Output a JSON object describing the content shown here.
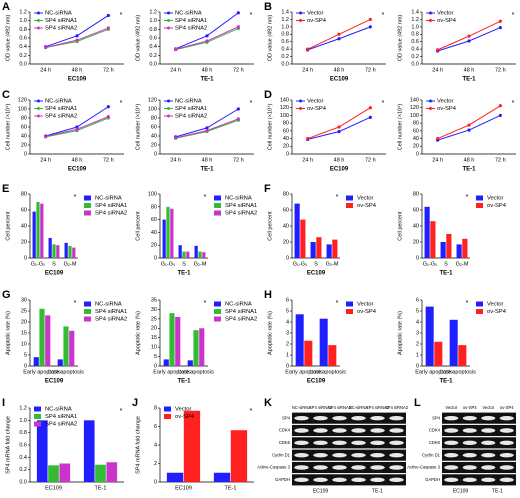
{
  "chart_data": [
    {
      "type": "line",
      "panel": "A",
      "ylabel": "OD value (492 nm)",
      "xlabel": "EC109",
      "categories": [
        "24 h",
        "48 h",
        "72 h"
      ],
      "series": [
        {
          "name": "NC-siRNA",
          "color": "#2020ff",
          "values": [
            0.4,
            0.65,
            1.12
          ]
        },
        {
          "name": "SP4 siRNA1",
          "color": "#33bb33",
          "values": [
            0.38,
            0.52,
            0.8
          ]
        },
        {
          "name": "SP4 siRNA2",
          "color": "#cc33cc",
          "values": [
            0.38,
            0.55,
            0.83
          ]
        }
      ],
      "ylim": [
        0,
        1.2
      ],
      "yticks": [
        {
          "value": 0,
          "label": "0.0"
        },
        0.2,
        0.4,
        0.6,
        0.8,
        {
          "value": 1,
          "label": "1.0"
        },
        1.2
      ],
      "legend": "upper left",
      "annotation": "*"
    },
    {
      "type": "line",
      "ylabel": "OD value (492 nm)",
      "xlabel": "TE-1",
      "categories": [
        "24 h",
        "48 h",
        "72 h"
      ],
      "series": [
        {
          "name": "NC-siRNA",
          "color": "#2020ff",
          "values": [
            0.35,
            0.65,
            1.18
          ]
        },
        {
          "name": "SP4 siRNA1",
          "color": "#33bb33",
          "values": [
            0.33,
            0.5,
            0.82
          ]
        },
        {
          "name": "SP4 siRNA2",
          "color": "#cc33cc",
          "values": [
            0.34,
            0.53,
            0.86
          ]
        }
      ],
      "ylim": [
        0,
        1.2
      ],
      "yticks": [
        {
          "value": 0,
          "label": "0.0"
        },
        0.2,
        0.4,
        0.6,
        0.8,
        {
          "value": 1,
          "label": "1.0"
        },
        1.2
      ],
      "legend": "upper left",
      "annotation": "*"
    },
    {
      "type": "line",
      "panel": "B",
      "ylabel": "OD value (492 nm)",
      "xlabel": "EC109",
      "categories": [
        "24 h",
        "48 h",
        "72 h"
      ],
      "series": [
        {
          "name": "Vector",
          "color": "#2020ff",
          "values": [
            0.38,
            0.68,
            1.0
          ]
        },
        {
          "name": "ov-SP4",
          "color": "#ff2020",
          "values": [
            0.4,
            0.8,
            1.2
          ]
        }
      ],
      "ylim": [
        0,
        1.4
      ],
      "yticks": [
        {
          "value": 0,
          "label": "0.0"
        },
        0.2,
        0.4,
        0.6,
        0.8,
        {
          "value": 1,
          "label": "1.0"
        },
        1.2,
        1.4
      ],
      "legend": "upper left",
      "annotation": "*"
    },
    {
      "type": "line",
      "ylabel": "OD value (492 nm)",
      "xlabel": "TE-1",
      "categories": [
        "24 h",
        "48 h",
        "72 h"
      ],
      "series": [
        {
          "name": "Vector",
          "color": "#2020ff",
          "values": [
            0.35,
            0.62,
            0.98
          ]
        },
        {
          "name": "ov-SP4",
          "color": "#ff2020",
          "values": [
            0.38,
            0.75,
            1.15
          ]
        }
      ],
      "ylim": [
        0,
        1.4
      ],
      "yticks": [
        {
          "value": 0,
          "label": "0.0"
        },
        0.2,
        0.4,
        0.6,
        0.8,
        {
          "value": 1,
          "label": "1.0"
        },
        1.2,
        1.4
      ],
      "legend": "upper left",
      "annotation": "*"
    },
    {
      "type": "line",
      "panel": "C",
      "ylabel": "Cell number (×10⁴)",
      "xlabel": "EC109",
      "categories": [
        "24 h",
        "48 h",
        "72 h"
      ],
      "series": [
        {
          "name": "NC-siRNA",
          "color": "#2020ff",
          "values": [
            40,
            60,
            105
          ]
        },
        {
          "name": "SP4 siRNA1",
          "color": "#33bb33",
          "values": [
            38,
            52,
            80
          ]
        },
        {
          "name": "SP4 siRNA2",
          "color": "#cc33cc",
          "values": [
            39,
            55,
            83
          ]
        }
      ],
      "ylim": [
        0,
        120
      ],
      "yticks": [
        0,
        20,
        40,
        60,
        80,
        100,
        120
      ],
      "legend": "upper left",
      "annotation": "*"
    },
    {
      "type": "line",
      "ylabel": "Cell number (×10⁴)",
      "xlabel": "TE-1",
      "categories": [
        "24 h",
        "48 h",
        "72 h"
      ],
      "series": [
        {
          "name": "NC-siRNA",
          "color": "#2020ff",
          "values": [
            38,
            58,
            100
          ]
        },
        {
          "name": "SP4 siRNA1",
          "color": "#33bb33",
          "values": [
            35,
            50,
            75
          ]
        },
        {
          "name": "SP4 siRNA2",
          "color": "#cc33cc",
          "values": [
            36,
            52,
            78
          ]
        }
      ],
      "ylim": [
        0,
        120
      ],
      "yticks": [
        0,
        20,
        40,
        60,
        80,
        100,
        120
      ],
      "legend": "upper left",
      "annotation": "*"
    },
    {
      "type": "line",
      "panel": "D",
      "ylabel": "Cell number (×10⁴)",
      "xlabel": "EC109",
      "categories": [
        "24 h",
        "48 h",
        "72 h"
      ],
      "series": [
        {
          "name": "Vector",
          "color": "#2020ff",
          "values": [
            38,
            58,
            95
          ]
        },
        {
          "name": "ov-SP4",
          "color": "#ff2020",
          "values": [
            40,
            70,
            120
          ]
        }
      ],
      "ylim": [
        0,
        140
      ],
      "yticks": [
        0,
        20,
        40,
        60,
        80,
        100,
        120,
        140
      ],
      "legend": "upper left",
      "annotation": "*"
    },
    {
      "type": "line",
      "ylabel": "Cell number (×10⁴)",
      "xlabel": "TE-1",
      "categories": [
        "24 h",
        "48 h",
        "72 h"
      ],
      "series": [
        {
          "name": "Vector",
          "color": "#2020ff",
          "values": [
            36,
            62,
            100
          ]
        },
        {
          "name": "ov-SP4",
          "color": "#ff2020",
          "values": [
            40,
            75,
            125
          ]
        }
      ],
      "ylim": [
        0,
        140
      ],
      "yticks": [
        0,
        20,
        40,
        60,
        80,
        100,
        120,
        140
      ],
      "legend": "upper left",
      "annotation": "*"
    },
    {
      "type": "bar",
      "panel": "E",
      "ylabel": "Cell percent",
      "xlabel": "EC109",
      "categories": [
        "G₁-G₀",
        "S",
        "G₂-M"
      ],
      "series": [
        {
          "name": "NC-siRNA",
          "color": "#2020ff",
          "values": [
            58,
            25,
            19
          ]
        },
        {
          "name": "SP4 siRNA1",
          "color": "#33bb33",
          "values": [
            70,
            17,
            15
          ]
        },
        {
          "name": "SP4 siRNA2",
          "color": "#cc33cc",
          "values": [
            68,
            16,
            13
          ]
        }
      ],
      "ylim": [
        0,
        80
      ],
      "yticks": [
        0,
        20,
        40,
        60,
        80
      ],
      "legend": "right",
      "annotation": "*"
    },
    {
      "type": "bar",
      "ylabel": "Cell percent",
      "xlabel": "TE-1",
      "categories": [
        "G₁-G₀",
        "S",
        "G₂-M"
      ],
      "series": [
        {
          "name": "NC-siRNA",
          "color": "#2020ff",
          "values": [
            60,
            20,
            19
          ]
        },
        {
          "name": "SP4 siRNA1",
          "color": "#33bb33",
          "values": [
            80,
            10,
            10
          ]
        },
        {
          "name": "SP4 siRNA2",
          "color": "#cc33cc",
          "values": [
            77,
            10,
            9
          ]
        }
      ],
      "ylim": [
        0,
        100
      ],
      "yticks": [
        0,
        20,
        40,
        60,
        80,
        100
      ],
      "legend": "right",
      "annotation": "*"
    },
    {
      "type": "bar",
      "panel": "F",
      "ylabel": "Cell percent",
      "xlabel": "EC109",
      "categories": [
        "G₁-G₀",
        "S",
        "G₂-M"
      ],
      "series": [
        {
          "name": "Vector",
          "color": "#2020ff",
          "values": [
            68,
            20,
            17
          ]
        },
        {
          "name": "ov-SP4",
          "color": "#ff2020",
          "values": [
            48,
            26,
            23
          ]
        }
      ],
      "ylim": [
        0,
        80
      ],
      "yticks": [
        0,
        20,
        40,
        60,
        80
      ],
      "legend": "right",
      "annotation": "*"
    },
    {
      "type": "bar",
      "ylabel": "Cell percent",
      "xlabel": "TE-1",
      "categories": [
        "G₁-G₀",
        "S",
        "G₂-M"
      ],
      "series": [
        {
          "name": "Vector",
          "color": "#2020ff",
          "values": [
            64,
            20,
            17
          ]
        },
        {
          "name": "ov-SP4",
          "color": "#ff2020",
          "values": [
            46,
            30,
            24
          ]
        }
      ],
      "ylim": [
        0,
        80
      ],
      "yticks": [
        0,
        20,
        40,
        60,
        80
      ],
      "legend": "right",
      "annotation": "*"
    },
    {
      "type": "bar",
      "panel": "G",
      "ylabel": "Apoptotic rate (%)",
      "xlabel": "EC109",
      "categories": [
        "Early apoptosis",
        "Late apoptosis"
      ],
      "series": [
        {
          "name": "NC-siRNA",
          "color": "#2020ff",
          "values": [
            4,
            3
          ]
        },
        {
          "name": "SP4 siRNA1",
          "color": "#33bb33",
          "values": [
            26,
            18
          ]
        },
        {
          "name": "SP4 siRNA2",
          "color": "#cc33cc",
          "values": [
            23,
            16
          ]
        }
      ],
      "ylim": [
        0,
        30
      ],
      "yticks": [
        0,
        5,
        10,
        15,
        20,
        25,
        30
      ],
      "legend": "right",
      "annotation": "*"
    },
    {
      "type": "bar",
      "ylabel": "Apoptotic rate (%)",
      "xlabel": "TE-1",
      "categories": [
        "Early apoptosis",
        "Late apoptosis"
      ],
      "series": [
        {
          "name": "NC-siRNA",
          "color": "#2020ff",
          "values": [
            3.5,
            3
          ]
        },
        {
          "name": "SP4 siRNA1",
          "color": "#33bb33",
          "values": [
            28,
            19
          ]
        },
        {
          "name": "SP4 siRNA2",
          "color": "#cc33cc",
          "values": [
            26,
            20
          ]
        }
      ],
      "ylim": [
        0,
        35
      ],
      "yticks": [
        0,
        5,
        10,
        15,
        20,
        25,
        30,
        35
      ],
      "legend": "right",
      "annotation": "*"
    },
    {
      "type": "bar",
      "panel": "H",
      "ylabel": "Apoptotic rate (%)",
      "xlabel": "EC109",
      "categories": [
        "Early apoptosis",
        "Late apoptosis"
      ],
      "series": [
        {
          "name": "Vector",
          "color": "#2020ff",
          "values": [
            4.7,
            4.3
          ]
        },
        {
          "name": "ov-SP4",
          "color": "#ff2020",
          "values": [
            2.3,
            1.9
          ]
        }
      ],
      "ylim": [
        0,
        6
      ],
      "yticks": [
        0,
        1,
        2,
        3,
        4,
        5,
        6
      ],
      "legend": "right",
      "annotation": "*"
    },
    {
      "type": "bar",
      "ylabel": "Apoptotic rate (%)",
      "xlabel": "TE-1",
      "categories": [
        "Early apoptosis",
        "Late apoptosis"
      ],
      "series": [
        {
          "name": "Vector",
          "color": "#2020ff",
          "values": [
            5.4,
            4.2
          ]
        },
        {
          "name": "ov-SP4",
          "color": "#ff2020",
          "values": [
            2.2,
            1.9
          ]
        }
      ],
      "ylim": [
        0,
        6
      ],
      "yticks": [
        0,
        1,
        2,
        3,
        4,
        5,
        6
      ],
      "legend": "right",
      "annotation": "*"
    },
    {
      "type": "bar",
      "panel": "I",
      "ylabel": "SP4 mRNA fold change",
      "categories": [
        "EC109",
        "TE-1"
      ],
      "series": [
        {
          "name": "NC-siRNA",
          "color": "#2020ff",
          "values": [
            1.0,
            1.0
          ]
        },
        {
          "name": "SP4 siRNA1",
          "color": "#33bb33",
          "values": [
            0.27,
            0.28
          ]
        },
        {
          "name": "SP4 siRNA2",
          "color": "#cc33cc",
          "values": [
            0.3,
            0.32
          ]
        }
      ],
      "ylim": [
        0,
        1.2
      ],
      "yticks": [
        {
          "value": 0,
          "label": "0.0"
        },
        0.2,
        0.4,
        0.6,
        0.8,
        {
          "value": 1,
          "label": "1.0"
        },
        1.2
      ],
      "legend": "upper left",
      "annotation": "*"
    },
    {
      "type": "bar",
      "panel": "J",
      "ylabel": "SP4 mRNA fold change",
      "categories": [
        "EC109",
        "TE-1"
      ],
      "series": [
        {
          "name": "Vector",
          "color": "#2020ff",
          "values": [
            1,
            1
          ]
        },
        {
          "name": "ov-SP4",
          "color": "#ff2020",
          "values": [
            7.7,
            5.6
          ]
        }
      ],
      "ylim": [
        0,
        8
      ],
      "yticks": [
        0,
        2,
        4,
        6,
        8
      ],
      "legend": "upper left",
      "annotation": "*"
    }
  ],
  "blots": [
    {
      "panel": "K",
      "lanes": [
        "NC-siRNA",
        "SP4 siRNA1",
        "SP4 siRNA2",
        "NC-siRNA",
        "SP4 siRNA1",
        "SP4 siRNA2"
      ],
      "rows": [
        "SP4",
        "CDK4",
        "CDK6",
        "Cyclin D1",
        "Active-Caspase 3",
        "GAPDH"
      ],
      "groups": [
        "EC109",
        "TE-1"
      ]
    },
    {
      "panel": "L",
      "lanes": [
        "Vector",
        "ov-SP4",
        "Vector",
        "ov-SP4"
      ],
      "rows": [
        "SP4",
        "CDK4",
        "CDK6",
        "Cyclin D1",
        "Active-Caspase 3",
        "GAPDH"
      ],
      "groups": [
        "EC109",
        "TE-1"
      ]
    }
  ]
}
